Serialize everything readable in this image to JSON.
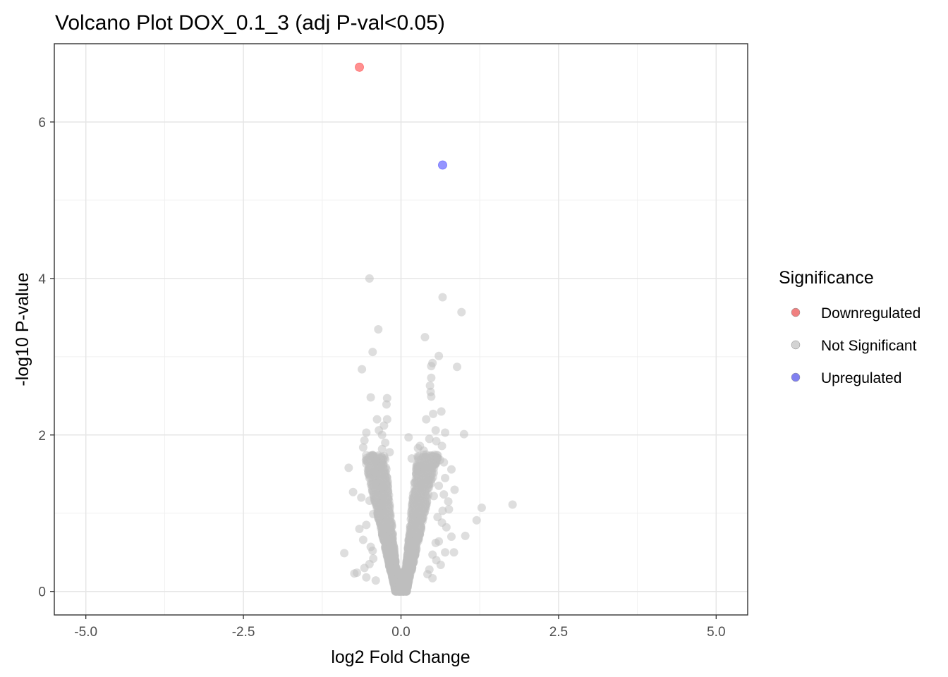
{
  "chart_data": {
    "type": "scatter",
    "title": "Volcano Plot DOX_0.1_3 (adj P-val<0.05)",
    "xlabel": "log2 Fold Change",
    "ylabel": "-log10 P-value",
    "xlim": [
      -5.5,
      5.5
    ],
    "ylim": [
      -0.3,
      7.0
    ],
    "x_ticks": [
      -5.0,
      -2.5,
      0.0,
      2.5,
      5.0
    ],
    "x_tick_labels": [
      "-5.0",
      "-2.5",
      "0.0",
      "2.5",
      "5.0"
    ],
    "y_ticks": [
      0,
      2,
      4,
      6
    ],
    "y_tick_labels": [
      "0",
      "2",
      "4",
      "6"
    ],
    "grid": true,
    "legend": {
      "title": "Significance",
      "position": "right",
      "entries": [
        {
          "label": "Downregulated",
          "color": "#f08080"
        },
        {
          "label": "Not Significant",
          "color": "#d3d3d3"
        },
        {
          "label": "Upregulated",
          "color": "#8080f0"
        }
      ]
    },
    "series": [
      {
        "name": "Downregulated",
        "color": "#ff6b6b",
        "points": [
          [
            -0.66,
            6.7
          ]
        ]
      },
      {
        "name": "Upregulated",
        "color": "#7070ff",
        "points": [
          [
            0.66,
            5.45
          ]
        ]
      },
      {
        "name": "Not Significant",
        "color": "#bebebe",
        "points": [
          [
            -0.5,
            4.0
          ],
          [
            0.66,
            3.76
          ],
          [
            0.96,
            3.57
          ],
          [
            -0.36,
            3.35
          ],
          [
            0.38,
            3.25
          ],
          [
            -0.45,
            3.06
          ],
          [
            0.6,
            3.01
          ],
          [
            0.5,
            2.92
          ],
          [
            0.48,
            2.88
          ],
          [
            0.89,
            2.87
          ],
          [
            -0.62,
            2.84
          ],
          [
            0.48,
            2.73
          ],
          [
            0.46,
            2.63
          ],
          [
            0.47,
            2.55
          ],
          [
            0.48,
            2.49
          ],
          [
            -0.48,
            2.48
          ],
          [
            -0.22,
            2.47
          ],
          [
            -0.23,
            2.39
          ],
          [
            0.64,
            2.3
          ],
          [
            0.51,
            2.27
          ],
          [
            -0.38,
            2.2
          ],
          [
            -0.22,
            2.2
          ],
          [
            0.4,
            2.2
          ],
          [
            -0.27,
            2.12
          ],
          [
            -0.35,
            2.06
          ],
          [
            0.55,
            2.06
          ],
          [
            -0.55,
            2.03
          ],
          [
            1.0,
            2.01
          ],
          [
            0.7,
            2.03
          ],
          [
            -0.3,
            2.0
          ],
          [
            0.12,
            1.97
          ],
          [
            0.45,
            1.95
          ],
          [
            -0.58,
            1.93
          ],
          [
            0.56,
            1.92
          ],
          [
            -0.25,
            1.9
          ],
          [
            0.3,
            1.86
          ],
          [
            -0.6,
            1.84
          ],
          [
            0.65,
            1.86
          ],
          [
            0.27,
            1.83
          ],
          [
            0.36,
            1.8
          ],
          [
            -0.3,
            1.82
          ],
          [
            -0.18,
            1.78
          ],
          [
            0.4,
            1.75
          ],
          [
            -0.44,
            1.73
          ],
          [
            0.17,
            1.7
          ],
          [
            0.58,
            1.7
          ],
          [
            -0.4,
            1.67
          ],
          [
            0.62,
            1.68
          ],
          [
            0.68,
            1.65
          ],
          [
            -0.28,
            1.62
          ],
          [
            0.31,
            1.6
          ],
          [
            -0.83,
            1.58
          ],
          [
            0.5,
            1.58
          ],
          [
            0.25,
            1.55
          ],
          [
            0.8,
            1.56
          ],
          [
            -0.42,
            1.52
          ],
          [
            -0.5,
            1.45
          ],
          [
            0.7,
            1.45
          ],
          [
            0.43,
            1.42
          ],
          [
            -0.4,
            1.38
          ],
          [
            0.6,
            1.35
          ],
          [
            -0.3,
            1.33
          ],
          [
            0.85,
            1.3
          ],
          [
            -0.76,
            1.27
          ],
          [
            0.68,
            1.24
          ],
          [
            0.52,
            1.22
          ],
          [
            -0.63,
            1.2
          ],
          [
            -0.5,
            1.16
          ],
          [
            0.75,
            1.15
          ],
          [
            1.77,
            1.11
          ],
          [
            1.28,
            1.07
          ],
          [
            0.76,
            1.05
          ],
          [
            0.66,
            1.03
          ],
          [
            -0.44,
            0.99
          ],
          [
            0.58,
            0.95
          ],
          [
            1.2,
            0.91
          ],
          [
            0.65,
            0.88
          ],
          [
            -0.55,
            0.85
          ],
          [
            0.72,
            0.82
          ],
          [
            -0.66,
            0.8
          ],
          [
            1.02,
            0.71
          ],
          [
            0.8,
            0.7
          ],
          [
            -0.6,
            0.66
          ],
          [
            0.6,
            0.64
          ],
          [
            0.55,
            0.62
          ],
          [
            -0.48,
            0.57
          ],
          [
            -0.45,
            0.52
          ],
          [
            0.84,
            0.5
          ],
          [
            0.7,
            0.5
          ],
          [
            -0.9,
            0.49
          ],
          [
            0.5,
            0.47
          ],
          [
            -0.44,
            0.42
          ],
          [
            0.56,
            0.4
          ],
          [
            -0.5,
            0.35
          ],
          [
            0.63,
            0.34
          ],
          [
            -0.58,
            0.3
          ],
          [
            0.45,
            0.28
          ],
          [
            -0.7,
            0.24
          ],
          [
            -0.74,
            0.23
          ],
          [
            0.42,
            0.22
          ],
          [
            -0.55,
            0.18
          ],
          [
            0.5,
            0.17
          ],
          [
            -0.4,
            0.14
          ]
        ],
        "cloud": {
          "width_per_unit": 0.27,
          "base_width": 0.09,
          "max_y": 1.75,
          "density": 2600
        }
      }
    ]
  }
}
